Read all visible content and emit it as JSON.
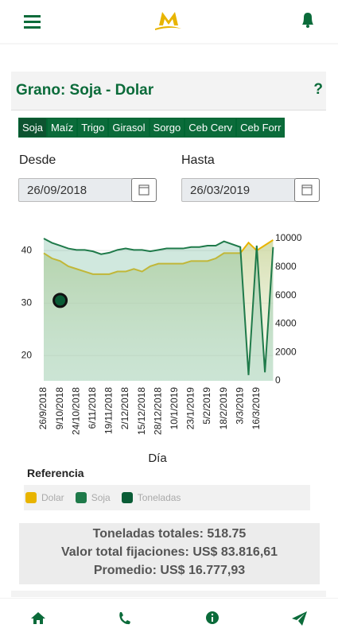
{
  "header": {
    "title": "Grano: Soja - Dolar",
    "help": "?"
  },
  "tabs": [
    "Soja",
    "Maíz",
    "Trigo",
    "Girasol",
    "Sorgo",
    "Ceb Cerv",
    "Ceb Forr"
  ],
  "filters": {
    "from_label": "Desde",
    "from_value": "26/09/2018",
    "to_label": "Hasta",
    "to_value": "26/03/2019"
  },
  "chart_data": {
    "type": "line",
    "x_label": "Día",
    "categories": [
      "26/9/2018",
      null,
      "9/10/2018",
      null,
      "24/10/2018",
      null,
      "6/11/2018",
      null,
      "19/11/2018",
      null,
      "2/12/2018",
      null,
      "15/12/2018",
      null,
      "28/12/2018",
      null,
      "10/1/2019",
      null,
      "23/1/2019",
      null,
      "5/2/2019",
      null,
      "18/2/2019",
      null,
      "3/3/2019",
      null,
      "16/3/2019",
      null,
      null
    ],
    "series": [
      {
        "name": "Dolar",
        "color": "#e8b400",
        "values": [
          39.5,
          38.5,
          38,
          37,
          36.5,
          36,
          35.5,
          35.5,
          35.5,
          36,
          36,
          36.5,
          36,
          37,
          37.5,
          37.5,
          37.5,
          37.5,
          38,
          38,
          38,
          38.5,
          39.5,
          39.5,
          39.5,
          41.5,
          40,
          41,
          42
        ]
      },
      {
        "name": "Soja",
        "color": "#1f7a4a",
        "axis": "y2",
        "values": [
          10000,
          9700,
          9500,
          9300,
          9200,
          9200,
          9100,
          8900,
          9000,
          9200,
          9300,
          9200,
          9200,
          9100,
          9200,
          9300,
          9300,
          9300,
          9400,
          9400,
          9500,
          9500,
          9800,
          9600,
          9400,
          400,
          9500,
          600,
          9400
        ]
      },
      {
        "name": "Toneladas",
        "color": "#0a5c36",
        "values": [
          null,
          null,
          30.5,
          null,
          null,
          null,
          null,
          null,
          null,
          null,
          null,
          null,
          null,
          null,
          null,
          null,
          null,
          null,
          null,
          null,
          null,
          null,
          null,
          null,
          null,
          null,
          null,
          null,
          null
        ]
      }
    ],
    "ylim": [
      15.2,
      43.8
    ],
    "yticks": [
      20,
      30,
      40
    ],
    "y2lim": [
      0,
      10560
    ],
    "y2ticks": [
      0,
      2000,
      4000,
      6000,
      8000,
      10000
    ]
  },
  "legend_title": "Referencia",
  "summary": [
    "Toneladas totales: 518.75",
    "Valor total fijaciones: US$ 83.816,61",
    "Promedio: US$ 16.777,93"
  ]
}
